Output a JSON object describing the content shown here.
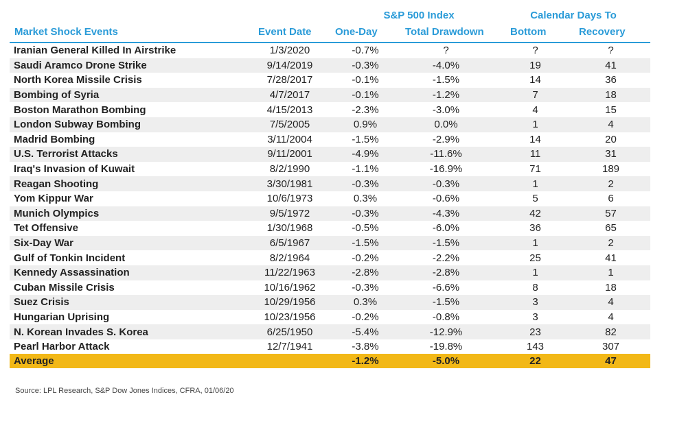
{
  "header": {
    "group_sp": "S&P 500 Index",
    "group_cal": "Calendar Days To",
    "col_event": "Market Shock Events",
    "col_date": "Event Date",
    "col_oneday": "One-Day",
    "col_drawdown": "Total Drawdown",
    "col_bottom": "Bottom",
    "col_recovery": "Recovery"
  },
  "rows": [
    {
      "event": "Iranian General Killed In Airstrike",
      "date": "1/3/2020",
      "oneday": "-0.7%",
      "drawdown": "?",
      "bottom": "?",
      "recovery": "?"
    },
    {
      "event": "Saudi Aramco Drone Strike",
      "date": "9/14/2019",
      "oneday": "-0.3%",
      "drawdown": "-4.0%",
      "bottom": "19",
      "recovery": "41"
    },
    {
      "event": "North Korea Missile Crisis",
      "date": "7/28/2017",
      "oneday": "-0.1%",
      "drawdown": "-1.5%",
      "bottom": "14",
      "recovery": "36"
    },
    {
      "event": "Bombing of Syria",
      "date": "4/7/2017",
      "oneday": "-0.1%",
      "drawdown": "-1.2%",
      "bottom": "7",
      "recovery": "18"
    },
    {
      "event": "Boston Marathon Bombing",
      "date": "4/15/2013",
      "oneday": "-2.3%",
      "drawdown": "-3.0%",
      "bottom": "4",
      "recovery": "15"
    },
    {
      "event": "London Subway Bombing",
      "date": "7/5/2005",
      "oneday": "0.9%",
      "drawdown": "0.0%",
      "bottom": "1",
      "recovery": "4"
    },
    {
      "event": "Madrid Bombing",
      "date": "3/11/2004",
      "oneday": "-1.5%",
      "drawdown": "-2.9%",
      "bottom": "14",
      "recovery": "20"
    },
    {
      "event": "U.S. Terrorist Attacks",
      "date": "9/11/2001",
      "oneday": "-4.9%",
      "drawdown": "-11.6%",
      "bottom": "11",
      "recovery": "31"
    },
    {
      "event": "Iraq's Invasion of Kuwait",
      "date": "8/2/1990",
      "oneday": "-1.1%",
      "drawdown": "-16.9%",
      "bottom": "71",
      "recovery": "189"
    },
    {
      "event": "Reagan Shooting",
      "date": "3/30/1981",
      "oneday": "-0.3%",
      "drawdown": "-0.3%",
      "bottom": "1",
      "recovery": "2"
    },
    {
      "event": "Yom Kippur War",
      "date": "10/6/1973",
      "oneday": "0.3%",
      "drawdown": "-0.6%",
      "bottom": "5",
      "recovery": "6"
    },
    {
      "event": "Munich Olympics",
      "date": "9/5/1972",
      "oneday": "-0.3%",
      "drawdown": "-4.3%",
      "bottom": "42",
      "recovery": "57"
    },
    {
      "event": "Tet Offensive",
      "date": "1/30/1968",
      "oneday": "-0.5%",
      "drawdown": "-6.0%",
      "bottom": "36",
      "recovery": "65"
    },
    {
      "event": "Six-Day War",
      "date": "6/5/1967",
      "oneday": "-1.5%",
      "drawdown": "-1.5%",
      "bottom": "1",
      "recovery": "2"
    },
    {
      "event": "Gulf of Tonkin Incident",
      "date": "8/2/1964",
      "oneday": "-0.2%",
      "drawdown": "-2.2%",
      "bottom": "25",
      "recovery": "41"
    },
    {
      "event": "Kennedy Assassination",
      "date": "11/22/1963",
      "oneday": "-2.8%",
      "drawdown": "-2.8%",
      "bottom": "1",
      "recovery": "1"
    },
    {
      "event": "Cuban Missile Crisis",
      "date": "10/16/1962",
      "oneday": "-0.3%",
      "drawdown": "-6.6%",
      "bottom": "8",
      "recovery": "18"
    },
    {
      "event": "Suez Crisis",
      "date": "10/29/1956",
      "oneday": "0.3%",
      "drawdown": "-1.5%",
      "bottom": "3",
      "recovery": "4"
    },
    {
      "event": "Hungarian Uprising",
      "date": "10/23/1956",
      "oneday": "-0.2%",
      "drawdown": "-0.8%",
      "bottom": "3",
      "recovery": "4"
    },
    {
      "event": "N. Korean Invades S. Korea",
      "date": "6/25/1950",
      "oneday": "-5.4%",
      "drawdown": "-12.9%",
      "bottom": "23",
      "recovery": "82"
    },
    {
      "event": "Pearl Harbor Attack",
      "date": "12/7/1941",
      "oneday": "-3.8%",
      "drawdown": "-19.8%",
      "bottom": "143",
      "recovery": "307"
    }
  ],
  "average": {
    "label": "Average",
    "oneday": "-1.2%",
    "drawdown": "-5.0%",
    "bottom": "22",
    "recovery": "47"
  },
  "source": "Source: LPL Research, S&P Dow Jones Indices, CFRA, 01/06/20",
  "colors": {
    "header_blue": "#2a9bd8",
    "average_band": "#f2b817",
    "row_shade": "#eeeeee"
  }
}
